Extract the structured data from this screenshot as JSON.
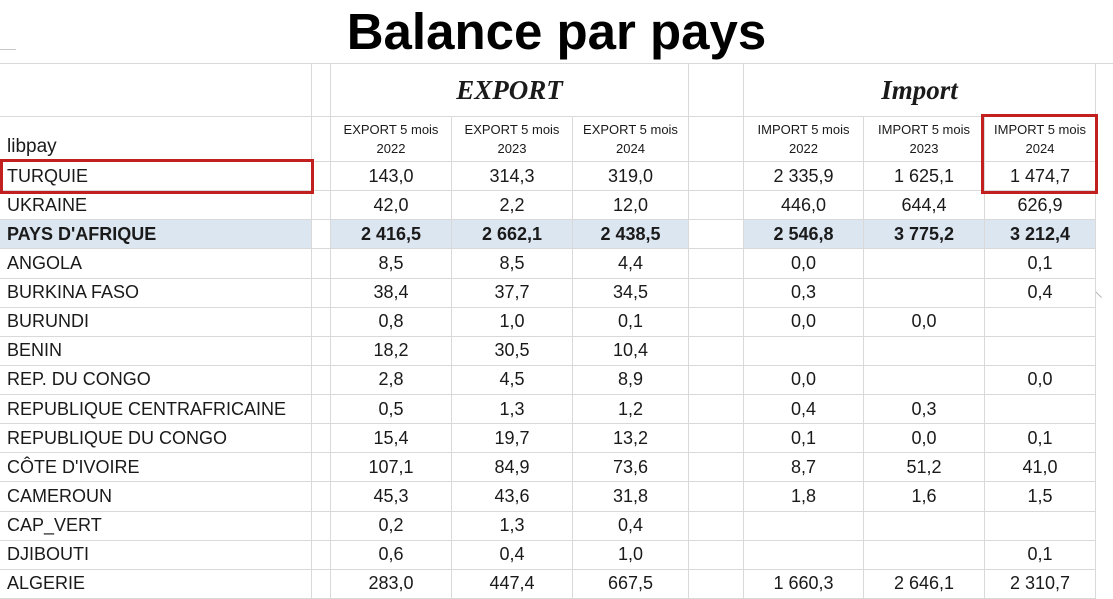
{
  "title": "Balance par pays",
  "row_header_label": "libpay",
  "groups": {
    "export": "EXPORT",
    "import": "Import"
  },
  "columns": [
    {
      "line1": "EXPORT 5 mois",
      "line2": "2022"
    },
    {
      "line1": "EXPORT 5 mois",
      "line2": "2023"
    },
    {
      "line1": "EXPORT 5 mois",
      "line2": "2024"
    },
    {
      "line1": "IMPORT 5 mois",
      "line2": "2022"
    },
    {
      "line1": "IMPORT 5 mois",
      "line2": "2023"
    },
    {
      "line1": "IMPORT 5 mois",
      "line2": "2024"
    }
  ],
  "rows": [
    {
      "name": "TURQUIE",
      "values": [
        "143,0",
        "314,3",
        "319,0",
        "2 335,9",
        "1 625,1",
        "1 474,7"
      ],
      "emphasis": false
    },
    {
      "name": "UKRAINE",
      "values": [
        "42,0",
        "2,2",
        "12,0",
        "446,0",
        "644,4",
        "626,9"
      ],
      "emphasis": false
    },
    {
      "name": "PAYS D'AFRIQUE",
      "values": [
        "2 416,5",
        "2 662,1",
        "2 438,5",
        "2 546,8",
        "3 775,2",
        "3 212,4"
      ],
      "emphasis": true
    },
    {
      "name": "ANGOLA",
      "values": [
        "8,5",
        "8,5",
        "4,4",
        "0,0",
        "",
        "0,1"
      ],
      "emphasis": false
    },
    {
      "name": "BURKINA FASO",
      "values": [
        "38,4",
        "37,7",
        "34,5",
        "0,3",
        "",
        "0,4"
      ],
      "emphasis": false
    },
    {
      "name": "BURUNDI",
      "values": [
        "0,8",
        "1,0",
        "0,1",
        "0,0",
        "0,0",
        ""
      ],
      "emphasis": false
    },
    {
      "name": "BENIN",
      "values": [
        "18,2",
        "30,5",
        "10,4",
        "",
        "",
        ""
      ],
      "emphasis": false
    },
    {
      "name": "REP. DU CONGO",
      "values": [
        "2,8",
        "4,5",
        "8,9",
        "0,0",
        "",
        "0,0"
      ],
      "emphasis": false
    },
    {
      "name": "REPUBLIQUE CENTRAFRICAINE",
      "values": [
        "0,5",
        "1,3",
        "1,2",
        "0,4",
        "0,3",
        ""
      ],
      "emphasis": false
    },
    {
      "name": "REPUBLIQUE DU CONGO",
      "values": [
        "15,4",
        "19,7",
        "13,2",
        "0,1",
        "0,0",
        "0,1"
      ],
      "emphasis": false
    },
    {
      "name": "CÔTE D'IVOIRE",
      "values": [
        "107,1",
        "84,9",
        "73,6",
        "8,7",
        "51,2",
        "41,0"
      ],
      "emphasis": false
    },
    {
      "name": "CAMEROUN",
      "values": [
        "45,3",
        "43,6",
        "31,8",
        "1,8",
        "1,6",
        "1,5"
      ],
      "emphasis": false
    },
    {
      "name": "CAP_VERT",
      "values": [
        "0,2",
        "1,3",
        "0,4",
        "",
        "",
        ""
      ],
      "emphasis": false
    },
    {
      "name": "DJIBOUTI",
      "values": [
        "0,6",
        "0,4",
        "1,0",
        "",
        "",
        "0,1"
      ],
      "emphasis": false
    },
    {
      "name": "ALGERIE",
      "values": [
        "283,0",
        "447,4",
        "667,5",
        "1 660,3",
        "2 646,1",
        "2 310,7"
      ],
      "emphasis": false
    }
  ],
  "annotations": {
    "highlight_boxes": [
      {
        "target": "TURQUIE row label cell"
      },
      {
        "target": "IMPORT 5 mois 2024 header and TURQUIE import value"
      }
    ]
  },
  "colors": {
    "annotation_red": "#c21f1f",
    "highlight_row_bg": "#dce6f1",
    "gridline": "#d9d9d9"
  }
}
